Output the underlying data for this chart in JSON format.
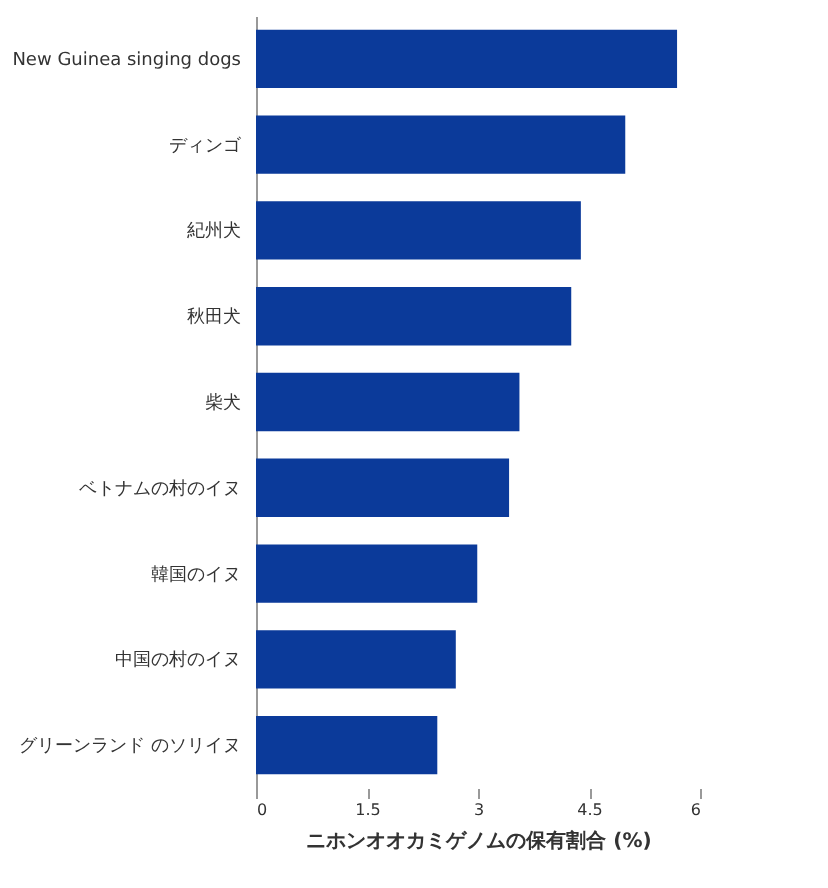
{
  "chart_data": {
    "type": "bar",
    "orientation": "horizontal",
    "xlabel": "ニホンオオカミゲノムの保有割合 (%)",
    "categories": [
      "New Guinea singing dogs",
      "ディンゴ",
      "紀州犬",
      "秋田犬",
      "柴犬",
      "ベトナムの村のイヌ",
      "韓国のイヌ",
      "中国の村のイヌ",
      "グリーンランド のソリイヌ"
    ],
    "values": [
      5.69,
      4.99,
      4.39,
      4.26,
      3.56,
      3.42,
      2.99,
      2.7,
      2.45
    ],
    "color": "#0b3a9a",
    "xlim": [
      0,
      6
    ],
    "xticks": [
      0,
      1.5,
      3,
      4.5,
      6
    ],
    "grid": false
  }
}
